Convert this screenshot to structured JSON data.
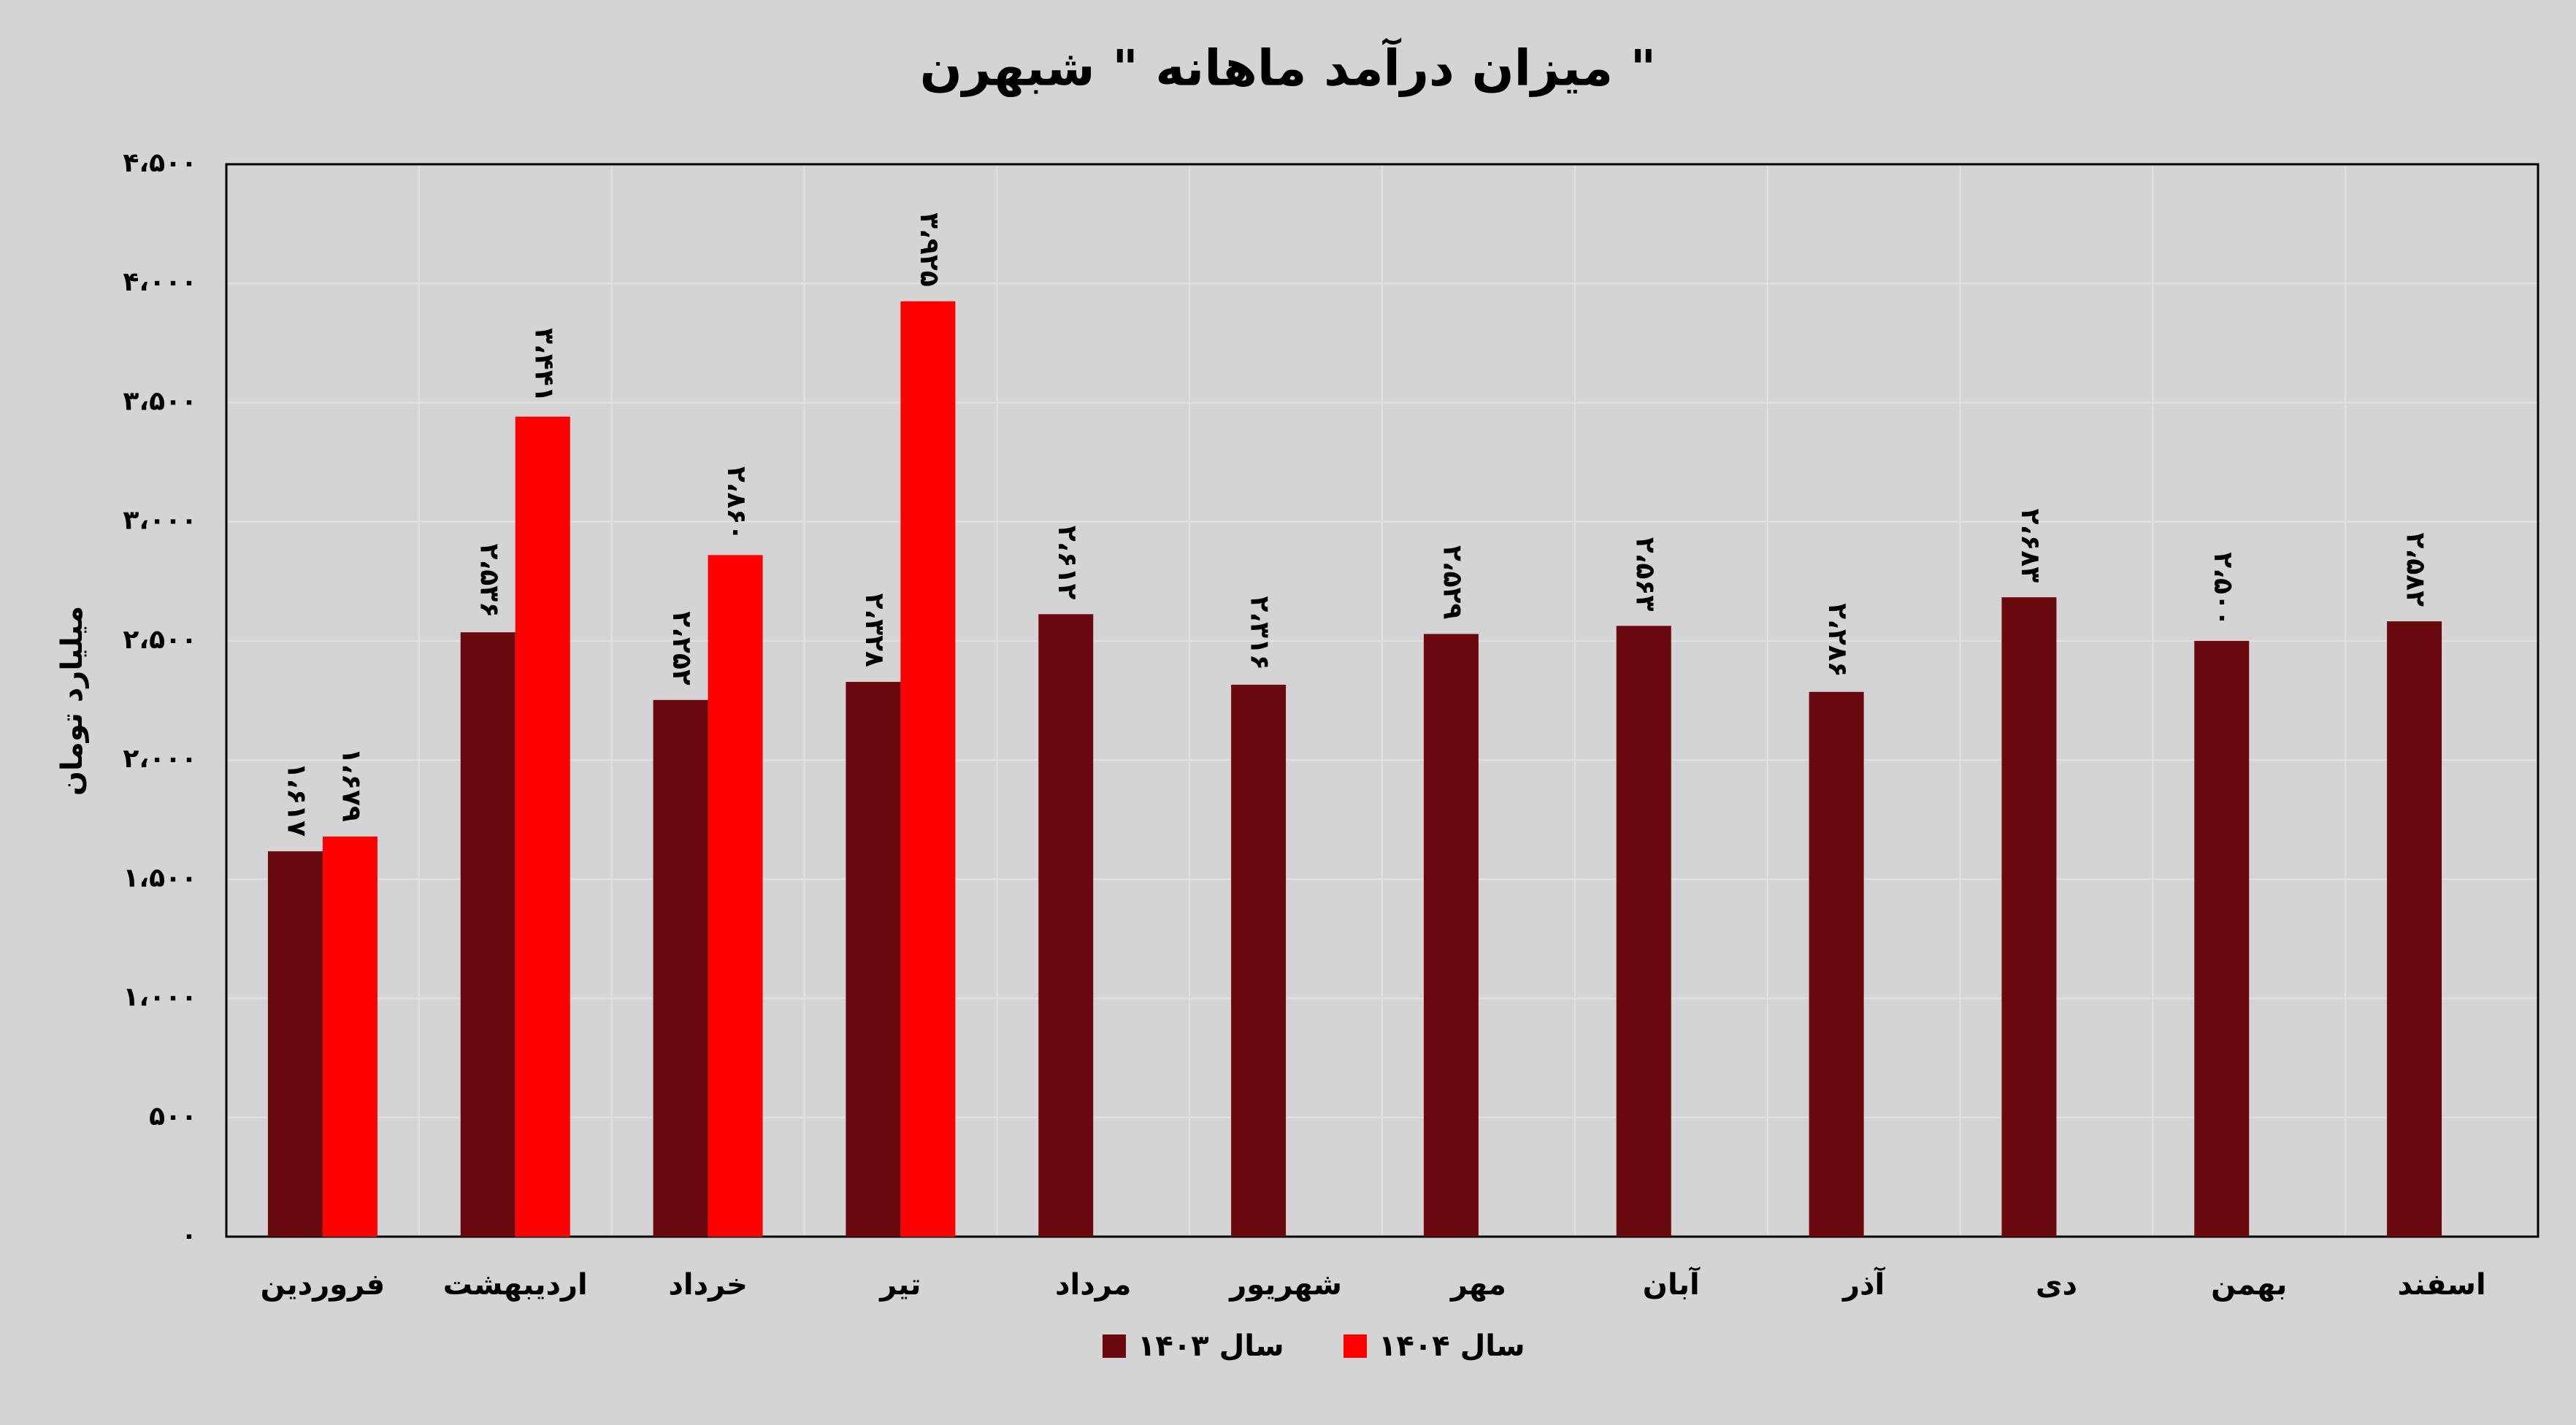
{
  "chart_data": {
    "type": "bar",
    "title": "میزان درآمد ماهانه \" شبهرن \"",
    "y_label": "میلیارد تومان",
    "categories": [
      "فروردین",
      "اردیبهشت",
      "خرداد",
      "تیر",
      "مرداد",
      "شهریور",
      "مهر",
      "آبان",
      "آذر",
      "دی",
      "بهمن",
      "اسفند"
    ],
    "series": [
      {
        "name": "سال ۱۴۰۳",
        "color": "#6b0a0e",
        "values": [
          1617,
          2536,
          2252,
          2328,
          2612,
          2316,
          2529,
          2563,
          2286,
          2683,
          2500,
          2582
        ],
        "value_labels": [
          "۱،۶۱۷",
          "۲،۵۳۶",
          "۲،۲۵۲",
          "۲،۳۲۸",
          "۲،۶۱۲",
          "۲،۳۱۶",
          "۲،۵۲۹",
          "۲،۵۶۳",
          "۲،۲۸۶",
          "۲،۶۸۳",
          "۲،۵۰۰",
          "۲،۵۸۲"
        ]
      },
      {
        "name": "سال ۱۴۰۴",
        "color": "#ff0000",
        "values": [
          1679,
          3441,
          2860,
          3925,
          null,
          null,
          null,
          null,
          null,
          null,
          null,
          null
        ],
        "value_labels": [
          "۱،۶۷۹",
          "۳،۴۴۱",
          "۲،۸۶۰",
          "۳،۹۲۵",
          null,
          null,
          null,
          null,
          null,
          null,
          null,
          null
        ]
      }
    ],
    "ylim": [
      0,
      4500
    ],
    "yticks": [
      {
        "value": 0,
        "label": "۰"
      },
      {
        "value": 500,
        "label": "۵۰۰"
      },
      {
        "value": 1000,
        "label": "۱،۰۰۰"
      },
      {
        "value": 1500,
        "label": "۱،۵۰۰"
      },
      {
        "value": 2000,
        "label": "۲،۰۰۰"
      },
      {
        "value": 2500,
        "label": "۲،۵۰۰"
      },
      {
        "value": 3000,
        "label": "۳،۰۰۰"
      },
      {
        "value": 3500,
        "label": "۳،۵۰۰"
      },
      {
        "value": 4000,
        "label": "۴،۰۰۰"
      },
      {
        "value": 4500,
        "label": "۴،۵۰۰"
      }
    ],
    "grid": true
  }
}
